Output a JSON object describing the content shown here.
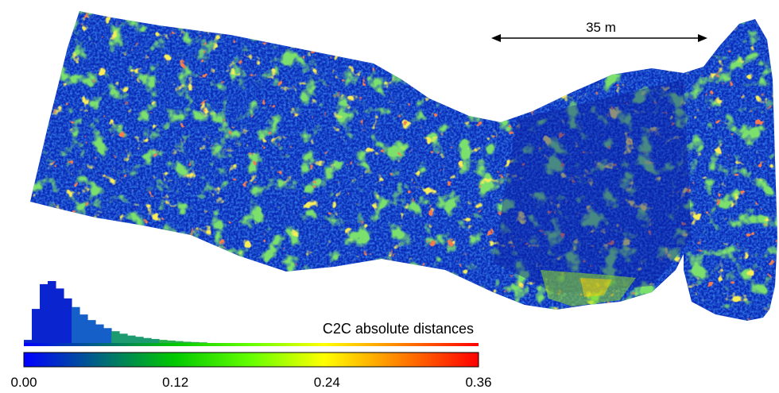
{
  "scale_bar": {
    "label": "35 m"
  },
  "colorbar": {
    "title": "C2C absolute distances",
    "ticks": [
      "0.00",
      "0.12",
      "0.24",
      "0.36"
    ],
    "range": [
      0,
      0.36
    ],
    "colors": [
      "#0000ff",
      "#00ff00",
      "#ffff00",
      "#ff0000"
    ]
  },
  "histogram": {
    "bin_range": [
      0,
      0.36
    ],
    "counts": [
      0.05,
      0.55,
      0.95,
      1.0,
      0.88,
      0.72,
      0.58,
      0.46,
      0.37,
      0.3,
      0.24,
      0.19,
      0.15,
      0.12,
      0.1,
      0.08,
      0.065,
      0.05,
      0.04,
      0.03,
      0.02,
      0.015,
      0.01
    ]
  },
  "point_cloud": {
    "dominant_color": "#0a2ab8",
    "secondary_colors": [
      "#0e5fd4",
      "#1fa83a",
      "#7ed321",
      "#ffd200",
      "#e8421a"
    ]
  }
}
